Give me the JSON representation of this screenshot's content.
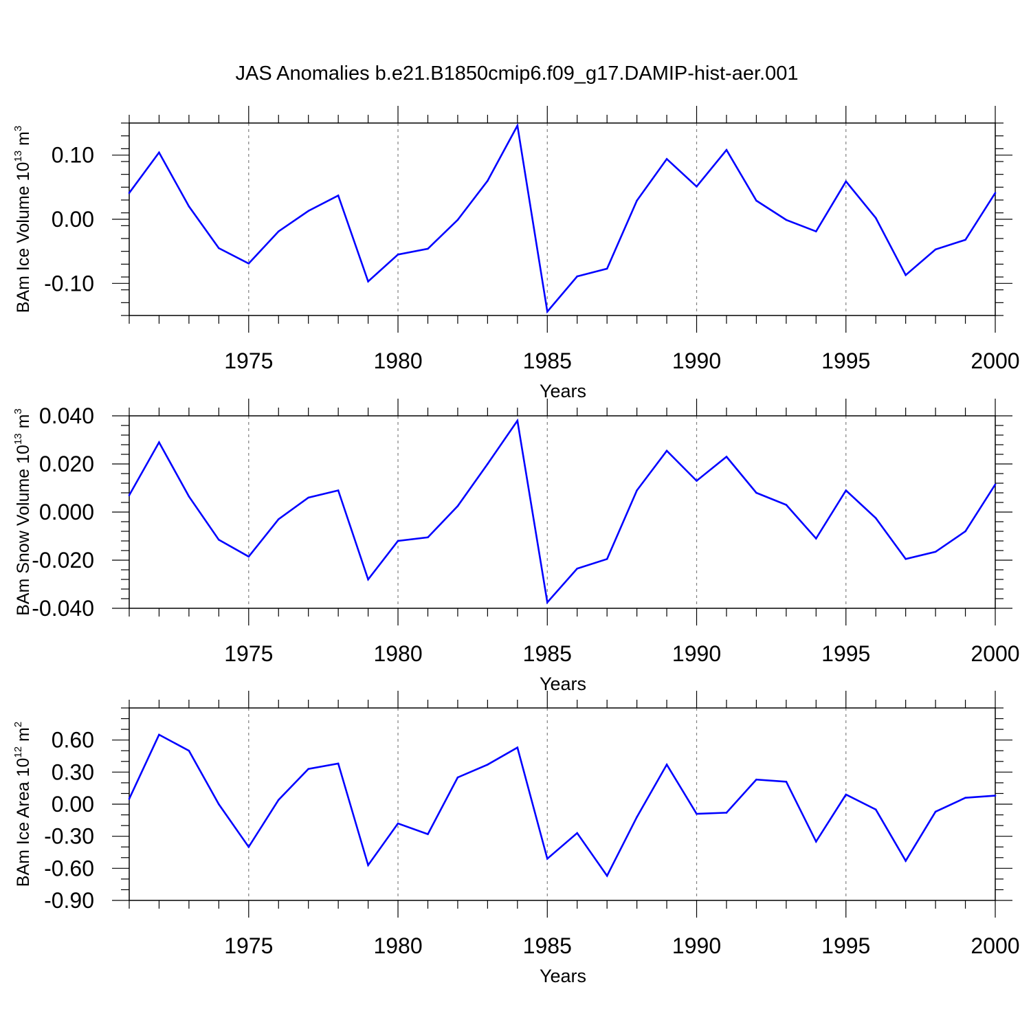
{
  "title": "JAS Anomalies b.e21.B1850cmip6.f09_g17.DAMIP-hist-aer.001",
  "colors": {
    "line": "#0000ff",
    "axis": "#000000",
    "grid": "#7f7f7f"
  },
  "chart_data": [
    {
      "type": "line",
      "ylabel": {
        "main": "BAm Ice Volume 10",
        "exp": "13",
        "unit": " m",
        "unit_exp": "3"
      },
      "xlabel": "Years",
      "xlim": [
        1971,
        2000
      ],
      "ylim": [
        -0.15,
        0.15
      ],
      "yticks": [
        -0.1,
        0.0,
        0.1
      ],
      "ytick_labels": [
        "-0.10",
        "0.00",
        "0.10"
      ],
      "yminor_step": 0.02,
      "xticks": [
        1975,
        1980,
        1985,
        1990,
        1995,
        2000
      ],
      "xtick_labels": [
        "1975",
        "1980",
        "1985",
        "1990",
        "1995",
        "2000"
      ],
      "grid_x": [
        1975,
        1980,
        1985,
        1990,
        1995
      ],
      "x": [
        1971,
        1972,
        1973,
        1974,
        1975,
        1976,
        1977,
        1978,
        1979,
        1980,
        1981,
        1982,
        1983,
        1984,
        1985,
        1986,
        1987,
        1988,
        1989,
        1990,
        1991,
        1992,
        1993,
        1994,
        1995,
        1996,
        1997,
        1998,
        1999,
        2000
      ],
      "values": [
        0.041,
        0.104,
        0.02,
        -0.045,
        -0.069,
        -0.019,
        0.013,
        0.037,
        -0.097,
        -0.055,
        -0.046,
        -0.001,
        0.06,
        0.146,
        -0.144,
        -0.089,
        -0.077,
        0.029,
        0.094,
        0.051,
        0.108,
        0.029,
        -0.001,
        -0.019,
        0.059,
        0.002,
        -0.087,
        -0.047,
        -0.032,
        0.041
      ]
    },
    {
      "type": "line",
      "ylabel": {
        "main": "BAm Snow Volume 10",
        "exp": "13",
        "unit": " m",
        "unit_exp": "3"
      },
      "xlabel": "Years",
      "xlim": [
        1971,
        2000
      ],
      "ylim": [
        -0.04,
        0.04
      ],
      "yticks": [
        -0.04,
        -0.02,
        0.0,
        0.02,
        0.04
      ],
      "ytick_labels": [
        "-0.040",
        "-0.020",
        "0.000",
        "0.020",
        "0.040"
      ],
      "yminor_step": 0.004,
      "xticks": [
        1975,
        1980,
        1985,
        1990,
        1995,
        2000
      ],
      "xtick_labels": [
        "1975",
        "1980",
        "1985",
        "1990",
        "1995",
        "2000"
      ],
      "grid_x": [
        1975,
        1980,
        1985,
        1990,
        1995
      ],
      "x": [
        1971,
        1972,
        1973,
        1974,
        1975,
        1976,
        1977,
        1978,
        1979,
        1980,
        1981,
        1982,
        1983,
        1984,
        1985,
        1986,
        1987,
        1988,
        1989,
        1990,
        1991,
        1992,
        1993,
        1994,
        1995,
        1996,
        1997,
        1998,
        1999,
        2000
      ],
      "values": [
        0.007,
        0.029,
        0.0065,
        -0.0115,
        -0.0185,
        -0.003,
        0.006,
        0.009,
        -0.028,
        -0.012,
        -0.0105,
        0.0025,
        0.02,
        0.038,
        -0.0375,
        -0.0235,
        -0.0195,
        0.009,
        0.0255,
        0.013,
        0.023,
        0.008,
        0.003,
        -0.011,
        0.009,
        -0.0025,
        -0.0195,
        -0.0165,
        -0.008,
        0.0115
      ]
    },
    {
      "type": "line",
      "ylabel": {
        "main": "BAm Ice Area 10",
        "exp": "12",
        "unit": " m",
        "unit_exp": "2"
      },
      "xlabel": "Years",
      "xlim": [
        1971,
        2000
      ],
      "ylim": [
        -0.9,
        0.9
      ],
      "yticks": [
        -0.9,
        -0.6,
        -0.3,
        0.0,
        0.3,
        0.6
      ],
      "ytick_labels": [
        "-0.90",
        "-0.60",
        "-0.30",
        "0.00",
        "0.30",
        "0.60"
      ],
      "yminor_step": 0.1,
      "xticks": [
        1975,
        1980,
        1985,
        1990,
        1995,
        2000
      ],
      "xtick_labels": [
        "1975",
        "1980",
        "1985",
        "1990",
        "1995",
        "2000"
      ],
      "grid_x": [
        1975,
        1980,
        1985,
        1990,
        1995
      ],
      "x": [
        1971,
        1972,
        1973,
        1974,
        1975,
        1976,
        1977,
        1978,
        1979,
        1980,
        1981,
        1982,
        1983,
        1984,
        1985,
        1986,
        1987,
        1988,
        1989,
        1990,
        1991,
        1992,
        1993,
        1994,
        1995,
        1996,
        1997,
        1998,
        1999,
        2000
      ],
      "values": [
        0.05,
        0.65,
        0.5,
        0.0,
        -0.4,
        0.04,
        0.33,
        0.38,
        -0.57,
        -0.18,
        -0.28,
        0.25,
        0.37,
        0.53,
        -0.51,
        -0.27,
        -0.67,
        -0.12,
        0.37,
        -0.09,
        -0.08,
        0.23,
        0.21,
        -0.35,
        0.09,
        -0.05,
        -0.53,
        -0.07,
        0.06,
        0.08
      ]
    }
  ]
}
